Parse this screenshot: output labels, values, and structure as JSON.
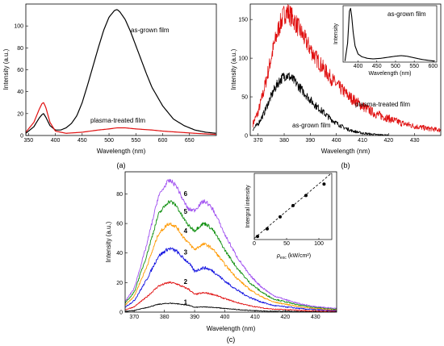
{
  "figure": {
    "captions": [
      "(a)",
      "(b)",
      "(c)"
    ]
  },
  "chart_data": [
    {
      "panel": "(a)",
      "type": "line",
      "xlabel": "Wavelength (nm)",
      "ylabel": "Intensity (a.u.)",
      "xlim": [
        345,
        700
      ],
      "ylim": [
        0,
        120
      ],
      "xticks": [
        350,
        400,
        450,
        500,
        550,
        600,
        650
      ],
      "yticks": [
        0,
        20,
        40,
        60,
        80,
        100
      ],
      "grid": false,
      "colors": {
        "as-grown film": "#000000",
        "plasma-treated film": "#e01010"
      },
      "annotations": [
        "as-grown film",
        "plasma-treated film"
      ],
      "series": [
        {
          "label_ref": "as-grown film",
          "x": [
            345,
            360,
            370,
            375,
            378,
            382,
            390,
            400,
            410,
            420,
            430,
            440,
            450,
            460,
            470,
            480,
            490,
            500,
            510,
            515,
            520,
            530,
            540,
            550,
            560,
            570,
            580,
            600,
            620,
            640,
            660,
            680,
            700
          ],
          "y": [
            2,
            8,
            16,
            19,
            20,
            17,
            9,
            5,
            5,
            7,
            11,
            18,
            30,
            46,
            63,
            80,
            96,
            108,
            114,
            115,
            113,
            106,
            95,
            82,
            69,
            56,
            44,
            27,
            15,
            9,
            5,
            3,
            2
          ]
        },
        {
          "label_ref": "plasma-treated film",
          "x": [
            345,
            360,
            370,
            375,
            378,
            382,
            390,
            400,
            420,
            450,
            480,
            500,
            515,
            530,
            550,
            580,
            600,
            630,
            660,
            700
          ],
          "y": [
            3,
            12,
            24,
            29,
            30,
            26,
            12,
            4,
            2,
            3,
            5,
            6,
            7,
            7,
            6,
            5,
            4,
            3,
            2,
            1
          ]
        }
      ]
    },
    {
      "panel": "(b)",
      "type": "line",
      "xlabel": "Wavelength (nm)",
      "ylabel": "Intensity (a.u.)",
      "xlim": [
        367,
        440
      ],
      "ylim": [
        0,
        170
      ],
      "xticks": [
        370,
        380,
        390,
        400,
        410,
        420,
        430
      ],
      "yticks": [
        0,
        50,
        100,
        150
      ],
      "grid": false,
      "colors": {
        "as-grown film": "#000000",
        "plasma-treated film": "#e01010"
      },
      "annotations": [
        "as-grown film",
        "plasma-treated film"
      ],
      "series": [
        {
          "label_ref": "plasma-treated film",
          "x": [
            368,
            370,
            372,
            374,
            376,
            378,
            380,
            381,
            382,
            384,
            386,
            388,
            390,
            392,
            395,
            398,
            400,
            405,
            410,
            415,
            420,
            425,
            430,
            435,
            440
          ],
          "y": [
            15,
            30,
            55,
            85,
            115,
            140,
            157,
            160,
            157,
            148,
            136,
            124,
            112,
            101,
            87,
            74,
            66,
            50,
            38,
            28,
            22,
            16,
            12,
            9,
            7
          ],
          "noise": 7
        },
        {
          "label_ref": "as-grown film",
          "x": [
            368,
            370,
            372,
            374,
            376,
            378,
            380,
            381,
            382,
            384,
            386,
            388,
            390,
            392,
            395,
            398,
            400,
            403,
            406,
            410,
            415,
            420
          ],
          "y": [
            8,
            15,
            27,
            43,
            58,
            70,
            77,
            78,
            76,
            70,
            62,
            54,
            46,
            39,
            30,
            21,
            16,
            10,
            6,
            3,
            1,
            0
          ],
          "noise": 5
        }
      ],
      "inset": {
        "type": "line",
        "xlabel": "Wavelength (nm)",
        "ylabel": "Intensity",
        "xlim": [
          360,
          610
        ],
        "ylim": [
          0,
          1.05
        ],
        "xticks": [
          400,
          450,
          500,
          550,
          600
        ],
        "series": [
          {
            "label_ref": "as-grown film",
            "x": [
              365,
              372,
              377,
              380,
              383,
              387,
              392,
              400,
              410,
              425,
              440,
              460,
              480,
              500,
              515,
              530,
              550,
              570,
              590,
              605
            ],
            "y": [
              0.02,
              0.35,
              0.95,
              1.0,
              0.85,
              0.55,
              0.3,
              0.15,
              0.1,
              0.07,
              0.06,
              0.07,
              0.09,
              0.11,
              0.12,
              0.11,
              0.08,
              0.05,
              0.03,
              0.02
            ]
          }
        ]
      }
    },
    {
      "panel": "(c)",
      "type": "line",
      "xlabel": "Wavelength (nm)",
      "ylabel": "Intensity (a.u.)",
      "xlim": [
        367,
        437
      ],
      "ylim": [
        0,
        95
      ],
      "xticks": [
        370,
        380,
        390,
        400,
        410,
        420,
        430
      ],
      "yticks": [
        0,
        20,
        40,
        60,
        80
      ],
      "grid": false,
      "series": [
        {
          "name": "1",
          "color": "#000000",
          "peak1": 6,
          "peak2": 3.5,
          "tail": 1,
          "noise": 0.8
        },
        {
          "name": "2",
          "color": "#e01010",
          "peak1": 20,
          "peak2": 13,
          "tail": 2,
          "noise": 1.0
        },
        {
          "name": "3",
          "color": "#1010e0",
          "peak1": 43,
          "peak2": 30,
          "tail": 3,
          "noise": 1.2
        },
        {
          "name": "4",
          "color": "#ff9900",
          "peak1": 60,
          "peak2": 46,
          "tail": 4,
          "noise": 1.0
        },
        {
          "name": "5",
          "color": "#109010",
          "peak1": 75,
          "peak2": 60,
          "tail": 5,
          "noise": 1.0
        },
        {
          "name": "6",
          "color": "#a050f0",
          "peak1": 89,
          "peak2": 75,
          "tail": 5,
          "noise": 1.0
        }
      ],
      "inset": {
        "type": "scatter",
        "xlabel_main": "ρ",
        "xlabel_sub": "exc",
        "xlabel_unit": "(kW/cm²)",
        "ylabel": "Intergral intensity",
        "xlim": [
          0,
          120
        ],
        "ylim": [
          0,
          105
        ],
        "xticks": [
          0,
          50,
          100
        ],
        "points": [
          {
            "x": 5,
            "y": 5
          },
          {
            "x": 20,
            "y": 17
          },
          {
            "x": 40,
            "y": 36
          },
          {
            "x": 60,
            "y": 54
          },
          {
            "x": 80,
            "y": 70
          },
          {
            "x": 108,
            "y": 88
          }
        ],
        "fit": {
          "style": "dashed",
          "x": [
            0,
            118
          ],
          "y": [
            2,
            104
          ]
        }
      }
    }
  ]
}
